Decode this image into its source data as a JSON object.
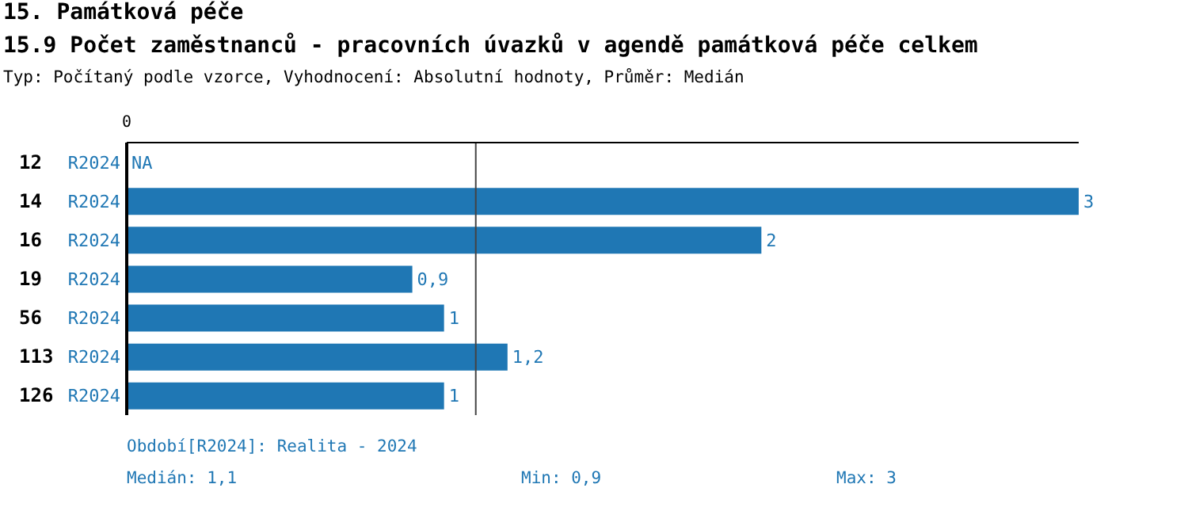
{
  "chart_data": {
    "type": "bar",
    "orientation": "horizontal",
    "title": "15. Památková péče",
    "subtitle": "15.9 Počet zaměstnanců - pracovních úvazků v agendě památková péče celkem",
    "categories": [
      "12",
      "14",
      "16",
      "19",
      "56",
      "113",
      "126"
    ],
    "series": [
      {
        "name": "R2024",
        "color": "#1f77b4",
        "values": [
          null,
          3,
          2,
          0.9,
          1,
          1.2,
          1
        ],
        "value_labels": [
          "NA",
          "3",
          "2",
          "0,9",
          "1",
          "1,2",
          "1"
        ]
      }
    ],
    "xlim": [
      0,
      3
    ],
    "ref_lines": [
      {
        "axis": "x",
        "value": 1.1,
        "color": "#444444"
      }
    ],
    "annotations": [
      "Typ: Počítaný podle vzorce, Vyhodnocení: Absolutní hodnoty, Průměr: Medián",
      "0",
      "Období[R2024]: Realita - 2024",
      "Medián: 1,1",
      "Min: 0,9",
      "Max: 3"
    ],
    "grid": false
  }
}
